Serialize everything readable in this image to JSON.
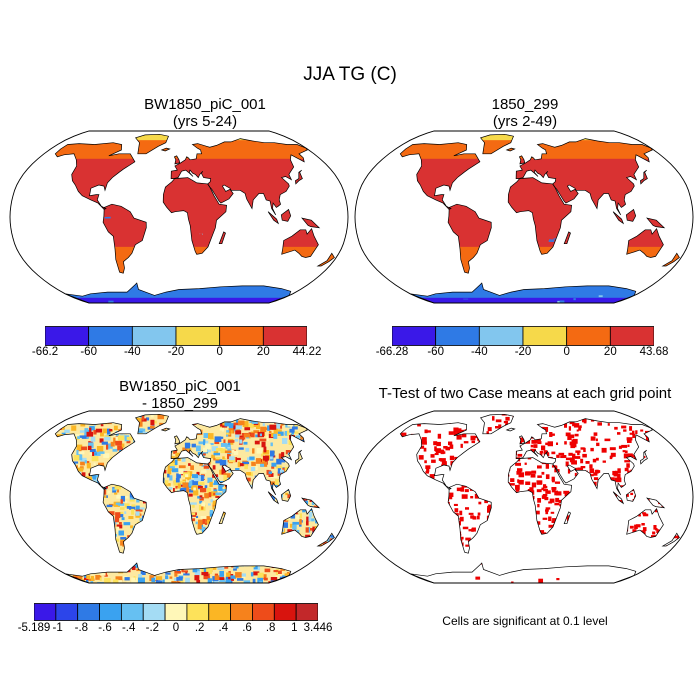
{
  "figure": {
    "title": "JJA TG (C)",
    "colors": {
      "land_base": "#d93232",
      "ocean": "#ffffff",
      "coast": "#000000",
      "significant": "#ee0000"
    }
  },
  "chart_data": [
    {
      "type": "heatmap",
      "projection": "Robinson",
      "title": "BW1850_piC_001",
      "subtitle": "(yrs 5-24)",
      "colorbar": {
        "labels": [
          "-66.2",
          "-60",
          "-40",
          "-20",
          "0",
          "20",
          "44.22"
        ],
        "colors": [
          "#3a18e8",
          "#2f7ae5",
          "#82c6ee",
          "#f6d94a",
          "#f46a12",
          "#d93232"
        ]
      }
    },
    {
      "type": "heatmap",
      "projection": "Robinson",
      "title": "1850_299",
      "subtitle": "(yrs 2-49)",
      "colorbar": {
        "labels": [
          "-66.28",
          "-60",
          "-40",
          "-20",
          "0",
          "20",
          "43.68"
        ],
        "colors": [
          "#3a18e8",
          "#2f7ae5",
          "#82c6ee",
          "#f6d94a",
          "#f46a12",
          "#d93232"
        ]
      }
    },
    {
      "type": "heatmap",
      "projection": "Robinson",
      "title": "BW1850_piC_001",
      "subtitle": "- 1850_299",
      "colorbar": {
        "labels": [
          "-5.189",
          "-1",
          "-.8",
          "-.6",
          "-.4",
          "-.2",
          "0",
          ".2",
          ".4",
          ".6",
          ".8",
          "1",
          "3.446"
        ],
        "colors": [
          "#3a18e8",
          "#2c45ea",
          "#2f7ae5",
          "#3aa2f0",
          "#66c0f2",
          "#a4dcf4",
          "#fff7b8",
          "#fde25a",
          "#fbb624",
          "#f6821c",
          "#ee4c1a",
          "#d8140e",
          "#c2282a"
        ]
      }
    },
    {
      "type": "heatmap",
      "projection": "Robinson",
      "title": "T-Test of two Case means at each grid point",
      "note": "Cells are significant at 0.1 level"
    }
  ]
}
